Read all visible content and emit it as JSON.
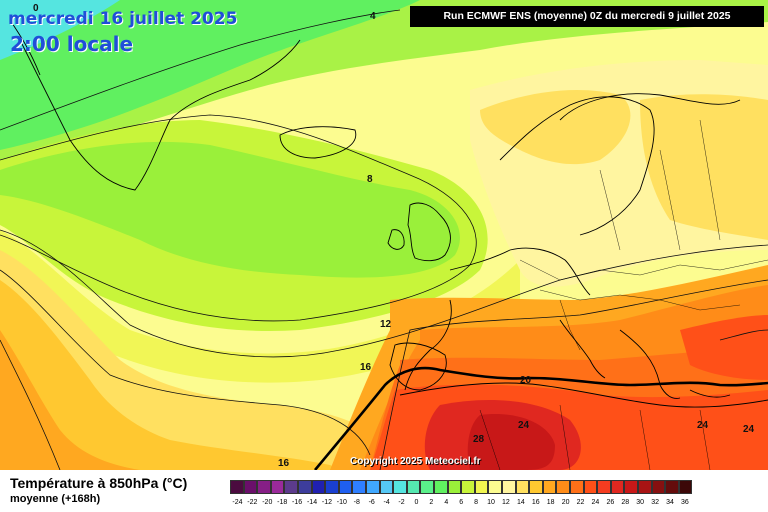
{
  "title": {
    "date": "mercredi 16 juillet 2025",
    "time": "2:00 locale",
    "run": "Run ECMWF ENS (moyenne) 0Z du mercredi 9 juillet 2025"
  },
  "copyright": "Copyright 2025 Meteociel.fr",
  "variable": {
    "title": "Température à 850hPa (°C)",
    "subtitle": "moyenne   (+168h)"
  },
  "contour_labels": [
    "0",
    "4",
    "8",
    "12",
    "16",
    "16",
    "20",
    "24",
    "24",
    "24",
    "28"
  ],
  "legend": {
    "colors": [
      "#4b0b3f",
      "#6a0f6a",
      "#861f86",
      "#9a2a9a",
      "#5c3b8c",
      "#3d3d9c",
      "#2020b0",
      "#1a3fd0",
      "#1f5ff0",
      "#2f7fff",
      "#40a8ff",
      "#55c8f5",
      "#55e5e0",
      "#55e8b0",
      "#5af08a",
      "#60f060",
      "#9af03a",
      "#c8f53a",
      "#f0f550",
      "#fcfc90",
      "#fff5a0",
      "#ffe060",
      "#ffc830",
      "#ffa820",
      "#ff8c18",
      "#ff7018",
      "#ff5018",
      "#f53c20",
      "#e02820",
      "#c81818",
      "#a81414",
      "#861010",
      "#640c0c",
      "#3c0808"
    ],
    "ticks": [
      "-24",
      "-22",
      "-20",
      "-18",
      "-16",
      "-14",
      "-12",
      "-10",
      "-8",
      "-6",
      "-4",
      "-2",
      "0",
      "2",
      "4",
      "6",
      "8",
      "10",
      "12",
      "14",
      "16",
      "18",
      "20",
      "22",
      "24",
      "26",
      "28",
      "30",
      "32",
      "34",
      "36"
    ]
  }
}
